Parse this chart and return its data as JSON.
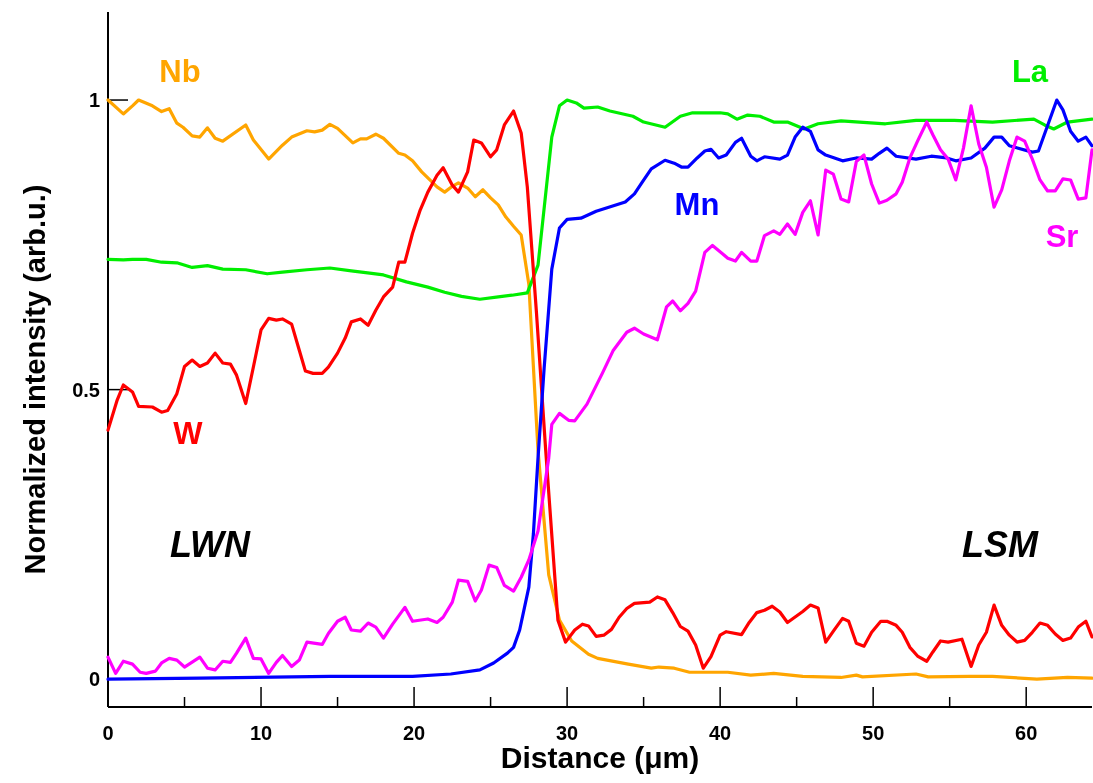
{
  "chart_data": {
    "type": "line",
    "xlabel": "Distance (μm)",
    "ylabel": "Normalized intensity (arb.u.)",
    "xlim": [
      0,
      64.3
    ],
    "ylim": [
      -0.048,
      1.152
    ],
    "xticks": [
      0,
      {
        "value": 5,
        "label": null
      },
      10,
      {
        "value": 15,
        "label": null
      },
      20,
      {
        "value": 25,
        "label": null
      },
      30,
      {
        "value": 35,
        "label": null
      },
      40,
      {
        "value": 45,
        "label": null
      },
      50,
      {
        "value": 55,
        "label": null
      },
      60
    ],
    "yticks": [
      0,
      0.5,
      1
    ],
    "grid": false,
    "legend": false,
    "marker": "none",
    "line_style": "solid",
    "annotations": [
      "LWN",
      "LSM"
    ],
    "series": [
      {
        "name": "Nb",
        "color": "#ffa500",
        "x": [
          0,
          1,
          1.6,
          2,
          2.9,
          3.5,
          4,
          4.5,
          4.9,
          5.5,
          6,
          6.5,
          7,
          7.5,
          9,
          9.5,
          10.5,
          11.4,
          12,
          13,
          13.5,
          14,
          14.5,
          15,
          16,
          16.5,
          16.9,
          17.5,
          18,
          19,
          19.4,
          19.9,
          20.5,
          21.5,
          22,
          22.5,
          22.9,
          23.5,
          24,
          24.5,
          25,
          25.5,
          26,
          26.5,
          27,
          27.5,
          28.1,
          28.8,
          29.5,
          30.3,
          31.4,
          32,
          34,
          35.5,
          36,
          37,
          38,
          40.5,
          42,
          43.5,
          45.4,
          47.9,
          48.9,
          49.3,
          52.8,
          53.6,
          56.3,
          57.8,
          60.7,
          62.7,
          64.3
        ],
        "values": [
          1.0,
          0.976,
          0.99,
          1.0,
          0.99,
          0.98,
          0.985,
          0.96,
          0.953,
          0.938,
          0.936,
          0.952,
          0.934,
          0.929,
          0.957,
          0.931,
          0.898,
          0.922,
          0.936,
          0.947,
          0.945,
          0.948,
          0.958,
          0.951,
          0.926,
          0.933,
          0.933,
          0.941,
          0.934,
          0.908,
          0.905,
          0.895,
          0.876,
          0.85,
          0.841,
          0.851,
          0.857,
          0.848,
          0.833,
          0.845,
          0.831,
          0.819,
          0.798,
          0.782,
          0.767,
          0.682,
          0.395,
          0.18,
          0.102,
          0.066,
          0.043,
          0.036,
          0.026,
          0.019,
          0.021,
          0.019,
          0.012,
          0.012,
          0.007,
          0.01,
          0.005,
          0.003,
          0.007,
          0.004,
          0.009,
          0.004,
          0.005,
          0.005,
          0.0,
          0.003,
          0.002
        ]
      },
      {
        "name": "La",
        "color": "#00ee00",
        "x": [
          0,
          1,
          1.6,
          2.5,
          3.5,
          4.5,
          5.5,
          6.5,
          7.5,
          9,
          10.4,
          11.4,
          13,
          14.5,
          15.9,
          17.1,
          18,
          19.5,
          20.9,
          22,
          23.1,
          24.3,
          25.5,
          26.4,
          27.4,
          28.1,
          29,
          29.5,
          30,
          30.6,
          31.1,
          32,
          32.8,
          34.3,
          35,
          36.4,
          37.4,
          38.2,
          40,
          40.5,
          41.1,
          41.8,
          42.6,
          43.5,
          44.4,
          45.5,
          46.4,
          47.9,
          50.8,
          52.8,
          55.3,
          57.8,
          60.5,
          61.2,
          61.8,
          62.7,
          64.3
        ],
        "values": [
          0.725,
          0.724,
          0.725,
          0.725,
          0.72,
          0.719,
          0.711,
          0.714,
          0.708,
          0.707,
          0.7,
          0.703,
          0.707,
          0.71,
          0.705,
          0.701,
          0.698,
          0.686,
          0.677,
          0.668,
          0.661,
          0.656,
          0.66,
          0.663,
          0.667,
          0.715,
          0.936,
          0.99,
          1.0,
          0.995,
          0.986,
          0.988,
          0.981,
          0.972,
          0.962,
          0.953,
          0.972,
          0.978,
          0.978,
          0.976,
          0.967,
          0.974,
          0.972,
          0.962,
          0.962,
          0.95,
          0.959,
          0.964,
          0.959,
          0.965,
          0.965,
          0.962,
          0.967,
          0.957,
          0.95,
          0.962,
          0.967
        ]
      },
      {
        "name": "W",
        "color": "#ff0000",
        "x": [
          0,
          0.6,
          1,
          1.6,
          2,
          2.9,
          3.5,
          3.9,
          4.5,
          5,
          5.5,
          6,
          6.5,
          7,
          7.5,
          8,
          8.4,
          9,
          9.5,
          10,
          10.5,
          11,
          11.4,
          12,
          12.5,
          12.9,
          13.4,
          14,
          14.4,
          15,
          15.5,
          15.9,
          16.5,
          17,
          17.5,
          18,
          18.6,
          19,
          19.4,
          19.9,
          20.4,
          20.9,
          21.5,
          21.9,
          22.5,
          22.9,
          23.5,
          23.9,
          24.4,
          25,
          25.4,
          25.9,
          26.5,
          27,
          27.4,
          28,
          28.6,
          29.4,
          29.9,
          30.5,
          31,
          31.4,
          31.9,
          32.4,
          32.9,
          33.4,
          33.9,
          34.4,
          35.4,
          35.9,
          36.4,
          36.9,
          37.4,
          37.9,
          38.4,
          38.9,
          39.4,
          40,
          40.4,
          41.4,
          41.9,
          42.4,
          42.9,
          43.4,
          43.9,
          44.4,
          45.4,
          45.9,
          46.4,
          46.9,
          47.4,
          48,
          48.4,
          48.9,
          49.4,
          49.9,
          50.5,
          50.9,
          51.5,
          51.9,
          52.4,
          52.9,
          53.5,
          53.9,
          54.4,
          54.9,
          55.8,
          56.4,
          56.9,
          57.4,
          57.9,
          58.4,
          58.9,
          59.4,
          59.9,
          60.4,
          60.9,
          61.4,
          61.9,
          62.4,
          62.9,
          63.4,
          63.9,
          64.3
        ],
        "values": [
          0.43,
          0.482,
          0.508,
          0.496,
          0.471,
          0.47,
          0.461,
          0.464,
          0.493,
          0.54,
          0.551,
          0.54,
          0.546,
          0.563,
          0.546,
          0.544,
          0.525,
          0.476,
          0.539,
          0.603,
          0.623,
          0.62,
          0.622,
          0.613,
          0.568,
          0.532,
          0.528,
          0.528,
          0.539,
          0.563,
          0.589,
          0.617,
          0.622,
          0.611,
          0.637,
          0.66,
          0.677,
          0.72,
          0.72,
          0.77,
          0.81,
          0.841,
          0.87,
          0.883,
          0.853,
          0.841,
          0.876,
          0.931,
          0.926,
          0.902,
          0.914,
          0.957,
          0.981,
          0.943,
          0.85,
          0.632,
          0.396,
          0.102,
          0.064,
          0.085,
          0.095,
          0.092,
          0.074,
          0.076,
          0.086,
          0.107,
          0.122,
          0.131,
          0.133,
          0.142,
          0.137,
          0.115,
          0.091,
          0.083,
          0.059,
          0.019,
          0.039,
          0.076,
          0.082,
          0.077,
          0.098,
          0.115,
          0.119,
          0.126,
          0.116,
          0.098,
          0.117,
          0.128,
          0.123,
          0.064,
          0.083,
          0.105,
          0.1,
          0.062,
          0.057,
          0.081,
          0.1,
          0.1,
          0.093,
          0.081,
          0.055,
          0.04,
          0.031,
          0.047,
          0.066,
          0.064,
          0.069,
          0.022,
          0.059,
          0.081,
          0.128,
          0.093,
          0.076,
          0.064,
          0.067,
          0.081,
          0.097,
          0.093,
          0.078,
          0.067,
          0.071,
          0.09,
          0.1,
          0.073
        ]
      },
      {
        "name": "Mn",
        "color": "#0000ff",
        "x": [
          0,
          6,
          14.5,
          19.9,
          22.4,
          24.3,
          25.2,
          26.1,
          26.5,
          26.9,
          27.5,
          27.8,
          28,
          28.1,
          28.5,
          29,
          29.5,
          30,
          30.9,
          31.9,
          33.8,
          34.4,
          34.9,
          35.5,
          36.4,
          37,
          37.5,
          37.9,
          38.5,
          39,
          39.4,
          39.9,
          40.4,
          41,
          41.4,
          42,
          42.4,
          42.9,
          43.9,
          44.4,
          44.9,
          45.4,
          45.9,
          46.4,
          46.9,
          48,
          48.9,
          49.9,
          50.4,
          50.9,
          51.5,
          52.8,
          53.8,
          54.8,
          55.4,
          56.4,
          57.3,
          57.9,
          58.4,
          58.9,
          60.4,
          60.8,
          62,
          62.4,
          62.9,
          63.4,
          63.9,
          64.3
        ],
        "values": [
          0.0,
          0.002,
          0.005,
          0.005,
          0.009,
          0.016,
          0.028,
          0.045,
          0.055,
          0.085,
          0.159,
          0.252,
          0.339,
          0.382,
          0.537,
          0.708,
          0.779,
          0.794,
          0.796,
          0.808,
          0.824,
          0.838,
          0.858,
          0.881,
          0.896,
          0.891,
          0.884,
          0.884,
          0.9,
          0.912,
          0.915,
          0.9,
          0.905,
          0.927,
          0.934,
          0.903,
          0.895,
          0.902,
          0.898,
          0.905,
          0.936,
          0.953,
          0.946,
          0.914,
          0.905,
          0.895,
          0.9,
          0.898,
          0.908,
          0.917,
          0.903,
          0.898,
          0.903,
          0.9,
          0.895,
          0.9,
          0.917,
          0.936,
          0.936,
          0.921,
          0.91,
          0.912,
          1.0,
          0.983,
          0.946,
          0.929,
          0.936,
          0.921
        ]
      },
      {
        "name": "Sr",
        "color": "#ff00ff",
        "x": [
          0,
          0.5,
          1,
          1.6,
          2.1,
          2.5,
          3.1,
          3.5,
          4,
          4.5,
          5,
          6,
          6.5,
          7,
          7.5,
          8,
          8.4,
          9,
          9.5,
          10,
          10.5,
          11,
          11.4,
          12,
          12.5,
          13,
          14,
          14.4,
          15,
          15.5,
          15.9,
          16.5,
          17,
          17.5,
          18,
          18.6,
          19.4,
          19.9,
          20.9,
          21.5,
          21.9,
          22.5,
          22.9,
          23.5,
          24,
          24.4,
          24.9,
          25.4,
          25.9,
          26.5,
          27,
          27.5,
          28.1,
          28.8,
          29,
          29.5,
          30.1,
          30.5,
          31.3,
          32.3,
          33,
          33.9,
          34.4,
          35,
          35.9,
          36.5,
          36.9,
          37.4,
          37.9,
          38.4,
          39,
          39.5,
          40.5,
          41,
          41.4,
          42,
          42.4,
          42.9,
          43.5,
          43.9,
          44.4,
          44.9,
          45.4,
          45.9,
          46.4,
          46.9,
          47.4,
          47.9,
          48.4,
          48.9,
          49.4,
          49.9,
          50.4,
          50.9,
          51.5,
          51.9,
          52.4,
          52.9,
          53.5,
          53.9,
          54.4,
          54.9,
          55.4,
          55.9,
          56.4,
          56.9,
          57.4,
          57.9,
          58.4,
          58.9,
          59.4,
          59.9,
          60.4,
          60.9,
          61.4,
          61.9,
          62.4,
          62.9,
          63.4,
          63.9,
          64.3
        ],
        "values": [
          0.038,
          0.01,
          0.031,
          0.026,
          0.012,
          0.01,
          0.014,
          0.028,
          0.036,
          0.033,
          0.021,
          0.038,
          0.019,
          0.016,
          0.031,
          0.029,
          0.045,
          0.071,
          0.036,
          0.035,
          0.01,
          0.029,
          0.041,
          0.022,
          0.033,
          0.064,
          0.06,
          0.079,
          0.1,
          0.107,
          0.085,
          0.083,
          0.097,
          0.09,
          0.071,
          0.095,
          0.124,
          0.1,
          0.104,
          0.098,
          0.107,
          0.133,
          0.171,
          0.169,
          0.135,
          0.154,
          0.197,
          0.193,
          0.162,
          0.152,
          0.176,
          0.206,
          0.256,
          0.382,
          0.44,
          0.459,
          0.447,
          0.446,
          0.475,
          0.528,
          0.567,
          0.599,
          0.606,
          0.596,
          0.586,
          0.643,
          0.653,
          0.636,
          0.649,
          0.67,
          0.737,
          0.749,
          0.727,
          0.722,
          0.737,
          0.722,
          0.722,
          0.766,
          0.774,
          0.768,
          0.786,
          0.768,
          0.806,
          0.826,
          0.767,
          0.879,
          0.872,
          0.829,
          0.824,
          0.894,
          0.905,
          0.855,
          0.822,
          0.827,
          0.838,
          0.858,
          0.9,
          0.929,
          0.962,
          0.94,
          0.914,
          0.898,
          0.862,
          0.917,
          0.99,
          0.924,
          0.884,
          0.815,
          0.845,
          0.895,
          0.936,
          0.929,
          0.898,
          0.862,
          0.843,
          0.843,
          0.864,
          0.862,
          0.829,
          0.831,
          0.914
        ]
      }
    ]
  }
}
